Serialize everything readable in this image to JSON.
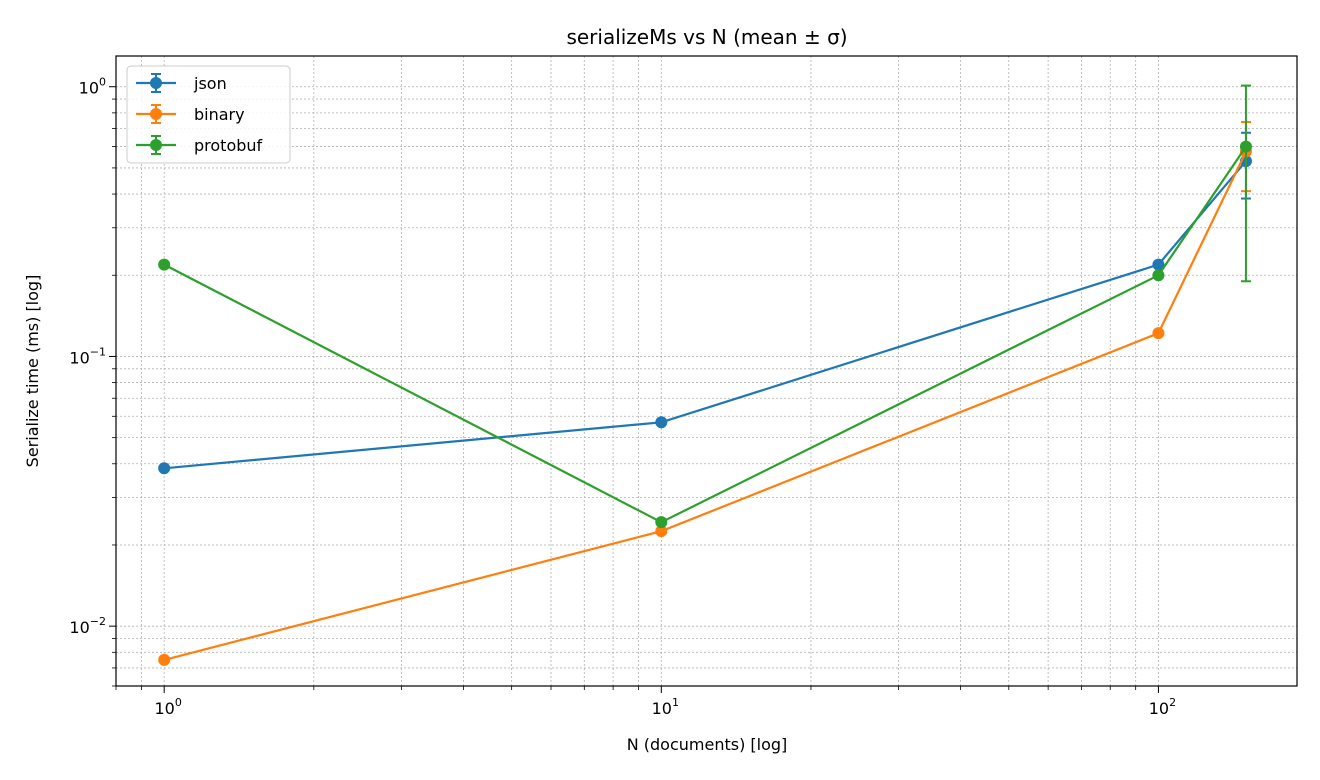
{
  "chart_data": {
    "type": "line",
    "title": "serializeMs vs N (mean ± σ)",
    "xlabel": "N (documents) [log]",
    "ylabel": "Serialize time (ms) [log]",
    "xscale": "log",
    "yscale": "log",
    "xlim": [
      0.8,
      190
    ],
    "ylim": [
      0.006,
      1.3
    ],
    "grid": true,
    "legend": "top-left",
    "x_ticks": [
      {
        "value": 1,
        "base": "10",
        "exp": "0"
      },
      {
        "value": 10,
        "base": "10",
        "exp": "1"
      },
      {
        "value": 100,
        "base": "10",
        "exp": "2"
      }
    ],
    "y_ticks": [
      {
        "value": 0.01,
        "base": "10",
        "exp": "−2"
      },
      {
        "value": 0.1,
        "base": "10",
        "exp": "−1"
      },
      {
        "value": 1,
        "base": "10",
        "exp": "0"
      }
    ],
    "series": [
      {
        "name": "json",
        "color": "#1f77b4",
        "x": [
          1,
          10,
          100,
          150
        ],
        "y": [
          0.0385,
          0.057,
          0.219,
          0.53
        ],
        "err": [
          0,
          0,
          0,
          0.145
        ]
      },
      {
        "name": "binary",
        "color": "#ff7f0e",
        "x": [
          1,
          10,
          100,
          150
        ],
        "y": [
          0.0075,
          0.0225,
          0.122,
          0.575
        ],
        "err": [
          0,
          0,
          0,
          0.165
        ]
      },
      {
        "name": "protobuf",
        "color": "#2ca02c",
        "x": [
          1,
          10,
          100,
          150
        ],
        "y": [
          0.219,
          0.0243,
          0.2,
          0.6
        ],
        "err": [
          0,
          0,
          0,
          0.41
        ]
      }
    ]
  }
}
